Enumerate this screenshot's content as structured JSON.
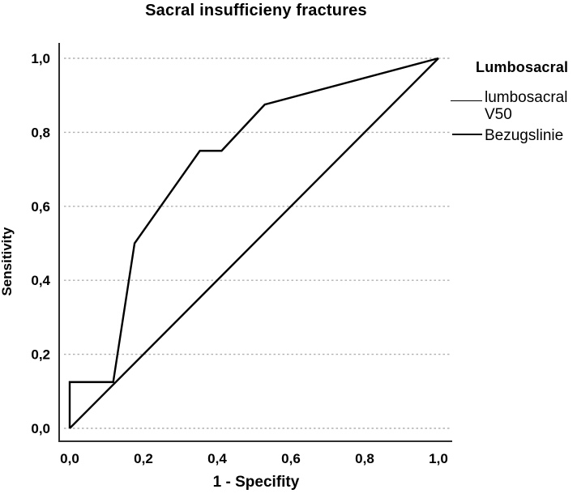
{
  "chart_data": {
    "type": "line",
    "title": "Sacral insufficieny fractures",
    "xlabel": "1 - Specifity",
    "ylabel": "Sensitivity",
    "xlim": [
      0,
      1
    ],
    "ylim": [
      0,
      1
    ],
    "grid": "horizontal-dashed",
    "legend_position": "right-outside",
    "xticks": {
      "values": [
        0,
        0.2,
        0.4,
        0.6,
        0.8,
        1.0
      ],
      "labels": [
        "0,0",
        "0,2",
        "0,4",
        "0,6",
        "0,8",
        "1,0"
      ]
    },
    "yticks": {
      "values": [
        0,
        0.2,
        0.4,
        0.6,
        0.8,
        1.0
      ],
      "labels": [
        "0,0",
        "0,2",
        "0,4",
        "0,6",
        "0,8",
        "1,0"
      ]
    },
    "series": [
      {
        "name": "lumbosacral V50",
        "points": [
          [
            0,
            0
          ],
          [
            0,
            0.125
          ],
          [
            0.118,
            0.125
          ],
          [
            0.176,
            0.5
          ],
          [
            0.353,
            0.75
          ],
          [
            0.412,
            0.75
          ],
          [
            0.529,
            0.875
          ],
          [
            1,
            1
          ]
        ]
      },
      {
        "name": "Bezugslinie",
        "points": [
          [
            0,
            0
          ],
          [
            1,
            1
          ]
        ]
      }
    ],
    "colors": {
      "line": "#000000",
      "axis": "#2e2e2e",
      "grid": "#b0b0b0",
      "text": "#000000"
    }
  },
  "legend": {
    "title": "Lumbosacral",
    "items": [
      {
        "label": "lumbosacral V50"
      },
      {
        "label": "Bezugslinie"
      }
    ]
  }
}
